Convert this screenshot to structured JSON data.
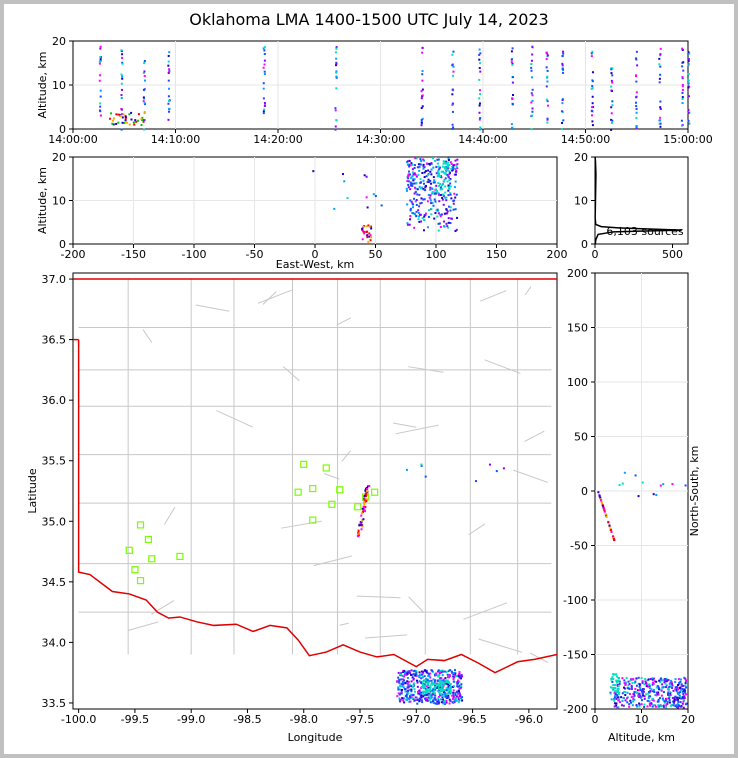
{
  "title": "Oklahoma LMA 1400-1500 UTC July 14, 2023",
  "colors": {
    "state_border": "#e00000",
    "county_lines": "#c8c8c8",
    "station": "#7cfc00"
  },
  "chart_data": [
    {
      "id": "time-altitude",
      "type": "scatter",
      "ylabel": "Altitude, km",
      "xticks": [
        "14:00:00",
        "14:10:00",
        "14:20:00",
        "14:30:00",
        "14:40:00",
        "14:50:00",
        "15:00:00"
      ],
      "xlim": [
        "14:00:00",
        "15:00:00"
      ],
      "ylim": [
        0,
        20
      ],
      "yticks": [
        0,
        10,
        20
      ],
      "grid": true
    },
    {
      "id": "ew-altitude",
      "type": "scatter",
      "xlabel": "East-West, km",
      "ylabel": "Altitude, km",
      "xlim": [
        -200,
        200
      ],
      "ylim": [
        0,
        20
      ],
      "xticks": [
        -200,
        -150,
        -100,
        -50,
        0,
        50,
        100,
        150,
        200
      ],
      "yticks": [
        0,
        10,
        20
      ],
      "grid": true
    },
    {
      "id": "altitude-histogram",
      "type": "line",
      "xlim": [
        0,
        600
      ],
      "ylim": [
        0,
        20
      ],
      "xticks": [
        0,
        500
      ],
      "yticks": [
        0,
        10,
        20
      ],
      "annotation": "6,103 sources",
      "profile": [
        [
          0.5,
          20
        ],
        [
          3,
          19
        ],
        [
          5,
          17
        ],
        [
          6,
          16
        ],
        [
          5,
          14
        ],
        [
          4,
          12
        ],
        [
          3,
          10
        ],
        [
          2,
          8
        ],
        [
          1,
          6
        ],
        [
          5,
          4.5
        ],
        [
          40,
          4
        ],
        [
          150,
          3.7
        ],
        [
          560,
          3.2
        ],
        [
          120,
          2.8
        ],
        [
          20,
          2.2
        ],
        [
          5,
          1
        ],
        [
          2,
          0
        ]
      ]
    },
    {
      "id": "plan-view",
      "type": "scatter",
      "xlabel": "Longitude",
      "ylabel": "Latitude",
      "xlim": [
        -100.05,
        -95.75
      ],
      "ylim": [
        33.45,
        37.05
      ],
      "xticks": [
        -100.0,
        -99.5,
        -99.0,
        -98.5,
        -98.0,
        -97.5,
        -97.0,
        -96.5,
        -96.0
      ],
      "yticks": [
        33.5,
        34.0,
        34.5,
        35.0,
        35.5,
        36.0,
        36.5,
        37.0
      ],
      "stations": [
        [
          -99.45,
          34.97
        ],
        [
          -99.38,
          34.85
        ],
        [
          -99.55,
          34.76
        ],
        [
          -99.35,
          34.69
        ],
        [
          -99.1,
          34.71
        ],
        [
          -99.5,
          34.6
        ],
        [
          -99.45,
          34.51
        ],
        [
          -98.0,
          35.47
        ],
        [
          -97.8,
          35.44
        ],
        [
          -98.05,
          35.24
        ],
        [
          -97.92,
          35.27
        ],
        [
          -97.68,
          35.26
        ],
        [
          -97.92,
          35.01
        ],
        [
          -97.75,
          35.14
        ],
        [
          -97.52,
          35.12
        ],
        [
          -97.45,
          35.2
        ],
        [
          -97.37,
          35.24
        ]
      ],
      "clusters": [
        {
          "lon": [
            -97.18,
            -96.6
          ],
          "lat": [
            33.5,
            33.78
          ],
          "note": "southern storm"
        },
        {
          "lon": [
            -97.55,
            -97.45
          ],
          "lat": [
            34.88,
            35.3
          ],
          "note": "central line"
        }
      ]
    },
    {
      "id": "ns-altitude",
      "type": "scatter",
      "xlabel": "Altitude, km",
      "ylabel": "North-South, km",
      "xlim": [
        0,
        20
      ],
      "ylim": [
        -200,
        200
      ],
      "xticks": [
        0,
        10,
        20
      ],
      "yticks": [
        -200,
        -150,
        -100,
        -50,
        0,
        50,
        100,
        150,
        200
      ],
      "grid": true
    }
  ]
}
